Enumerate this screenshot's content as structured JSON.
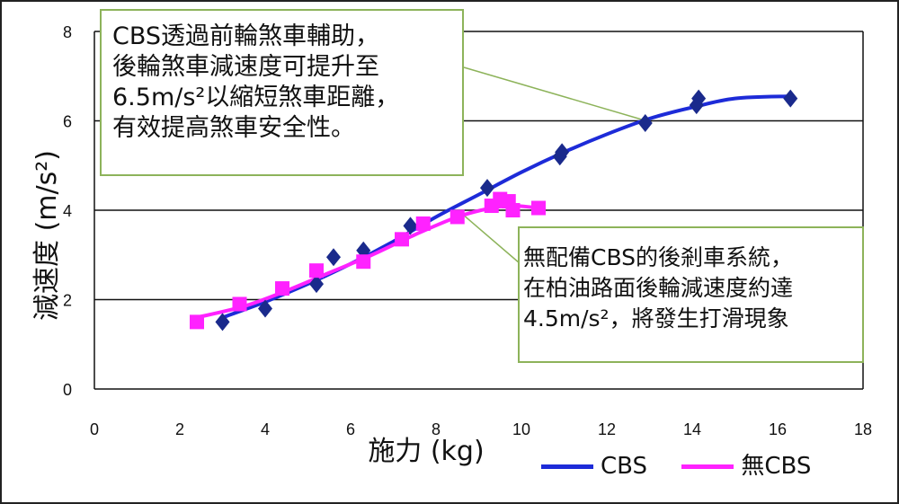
{
  "chart_data": {
    "type": "scatter",
    "xlabel": "施力 (kg)",
    "ylabel": "減速度 (m/s²)",
    "xlim": [
      0,
      18
    ],
    "ylim": [
      0,
      8
    ],
    "x_ticks": [
      "0",
      "2",
      "4",
      "6",
      "8",
      "10",
      "12",
      "14",
      "16",
      "18"
    ],
    "y_ticks": [
      "0",
      "2",
      "4",
      "6",
      "8"
    ],
    "grid": "horizontal",
    "legend_position": "bottom-right",
    "series": [
      {
        "name": "CBS",
        "color": "#1d2bd8",
        "marker": "diamond",
        "marker_color": "#1a2a8c",
        "points": [
          {
            "x": 3.0,
            "y": 1.5
          },
          {
            "x": 4.0,
            "y": 1.8
          },
          {
            "x": 5.2,
            "y": 2.35
          },
          {
            "x": 5.6,
            "y": 2.95
          },
          {
            "x": 6.3,
            "y": 3.1
          },
          {
            "x": 7.4,
            "y": 3.65
          },
          {
            "x": 9.2,
            "y": 4.5
          },
          {
            "x": 10.9,
            "y": 5.2
          },
          {
            "x": 10.95,
            "y": 5.3
          },
          {
            "x": 12.9,
            "y": 5.95
          },
          {
            "x": 14.1,
            "y": 6.35
          },
          {
            "x": 14.15,
            "y": 6.5
          },
          {
            "x": 16.3,
            "y": 6.5
          }
        ],
        "trend": [
          {
            "x": 3.0,
            "y": 1.6
          },
          {
            "x": 4.0,
            "y": 1.95
          },
          {
            "x": 5.0,
            "y": 2.35
          },
          {
            "x": 6.0,
            "y": 2.8
          },
          {
            "x": 7.0,
            "y": 3.3
          },
          {
            "x": 8.0,
            "y": 3.85
          },
          {
            "x": 9.0,
            "y": 4.35
          },
          {
            "x": 10.0,
            "y": 4.85
          },
          {
            "x": 11.0,
            "y": 5.3
          },
          {
            "x": 12.0,
            "y": 5.7
          },
          {
            "x": 13.0,
            "y": 6.05
          },
          {
            "x": 14.0,
            "y": 6.3
          },
          {
            "x": 15.0,
            "y": 6.5
          },
          {
            "x": 16.3,
            "y": 6.55
          }
        ]
      },
      {
        "name": "無CBS",
        "color": "#ff22ff",
        "marker": "square",
        "marker_color": "#ff22ff",
        "points": [
          {
            "x": 2.4,
            "y": 1.5
          },
          {
            "x": 3.4,
            "y": 1.9
          },
          {
            "x": 4.4,
            "y": 2.25
          },
          {
            "x": 5.2,
            "y": 2.65
          },
          {
            "x": 6.3,
            "y": 2.85
          },
          {
            "x": 7.2,
            "y": 3.35
          },
          {
            "x": 7.7,
            "y": 3.7
          },
          {
            "x": 8.5,
            "y": 3.85
          },
          {
            "x": 9.3,
            "y": 4.1
          },
          {
            "x": 9.5,
            "y": 4.25
          },
          {
            "x": 9.7,
            "y": 4.2
          },
          {
            "x": 9.8,
            "y": 4.0
          },
          {
            "x": 10.4,
            "y": 4.05
          }
        ],
        "trend": [
          {
            "x": 2.4,
            "y": 1.6
          },
          {
            "x": 3.5,
            "y": 1.85
          },
          {
            "x": 4.5,
            "y": 2.2
          },
          {
            "x": 5.5,
            "y": 2.6
          },
          {
            "x": 6.5,
            "y": 3.0
          },
          {
            "x": 7.5,
            "y": 3.45
          },
          {
            "x": 8.5,
            "y": 3.85
          },
          {
            "x": 9.3,
            "y": 4.05
          },
          {
            "x": 9.8,
            "y": 4.1
          },
          {
            "x": 10.4,
            "y": 4.05
          }
        ]
      }
    ],
    "annotations": [
      {
        "text": "CBS透過前輪煞車輔助，\n後輪煞車減速度可提升至\n6.5m/s²以縮短煞車距離，\n有效提高煞車安全性。",
        "points_to": {
          "x": 12.9,
          "y": 5.95
        }
      },
      {
        "text": "無配備CBS的後剎車系統，\n在柏油路面後輪減速度約達\n4.5m/s²，將發生打滑現象",
        "points_to": {
          "x": 8.5,
          "y": 3.9
        }
      }
    ]
  }
}
